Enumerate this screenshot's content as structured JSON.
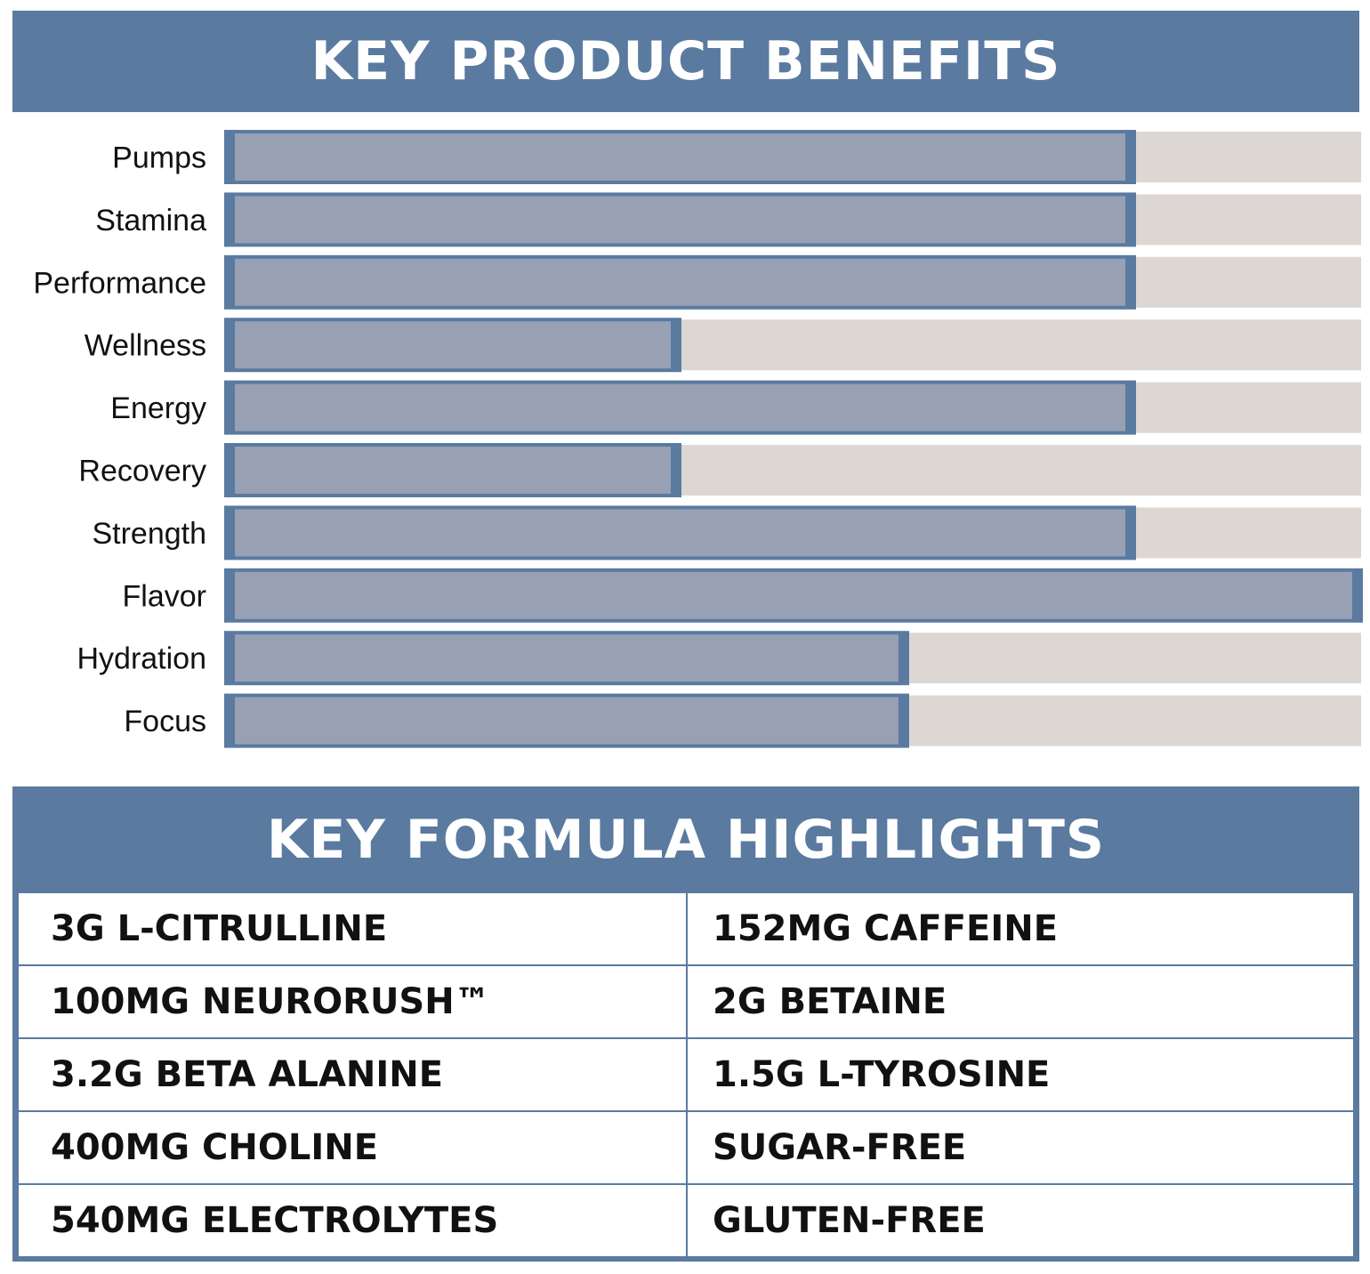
{
  "benefits_title": "KEY PRODUCT BENEFITS",
  "colors": {
    "banner": "#5a7aa0",
    "bar_fill": "#98a0b4",
    "bar_edge": "#5a7aa0",
    "track": "#ddd7d3"
  },
  "chart_data": {
    "type": "bar",
    "orientation": "horizontal",
    "title": "KEY PRODUCT BENEFITS",
    "categories": [
      "Pumps",
      "Stamina",
      "Performance",
      "Wellness",
      "Energy",
      "Recovery",
      "Strength",
      "Flavor",
      "Hydration",
      "Focus"
    ],
    "values": [
      0.8,
      0.8,
      0.8,
      0.4,
      0.8,
      0.4,
      0.8,
      1.0,
      0.6,
      0.6
    ],
    "xlim": [
      0,
      1
    ],
    "grid": false
  },
  "formula": {
    "title": "KEY FORMULA HIGHLIGHTS",
    "rows": [
      [
        "3G L-CITRULLINE",
        "152MG CAFFEINE"
      ],
      [
        "100MG NEURORUSH™",
        "2G BETAINE"
      ],
      [
        "3.2G BETA ALANINE",
        "1.5G L-TYROSINE"
      ],
      [
        "400MG CHOLINE",
        "SUGAR-FREE"
      ],
      [
        "540MG ELECTROLYTES",
        "GLUTEN-FREE"
      ]
    ]
  }
}
